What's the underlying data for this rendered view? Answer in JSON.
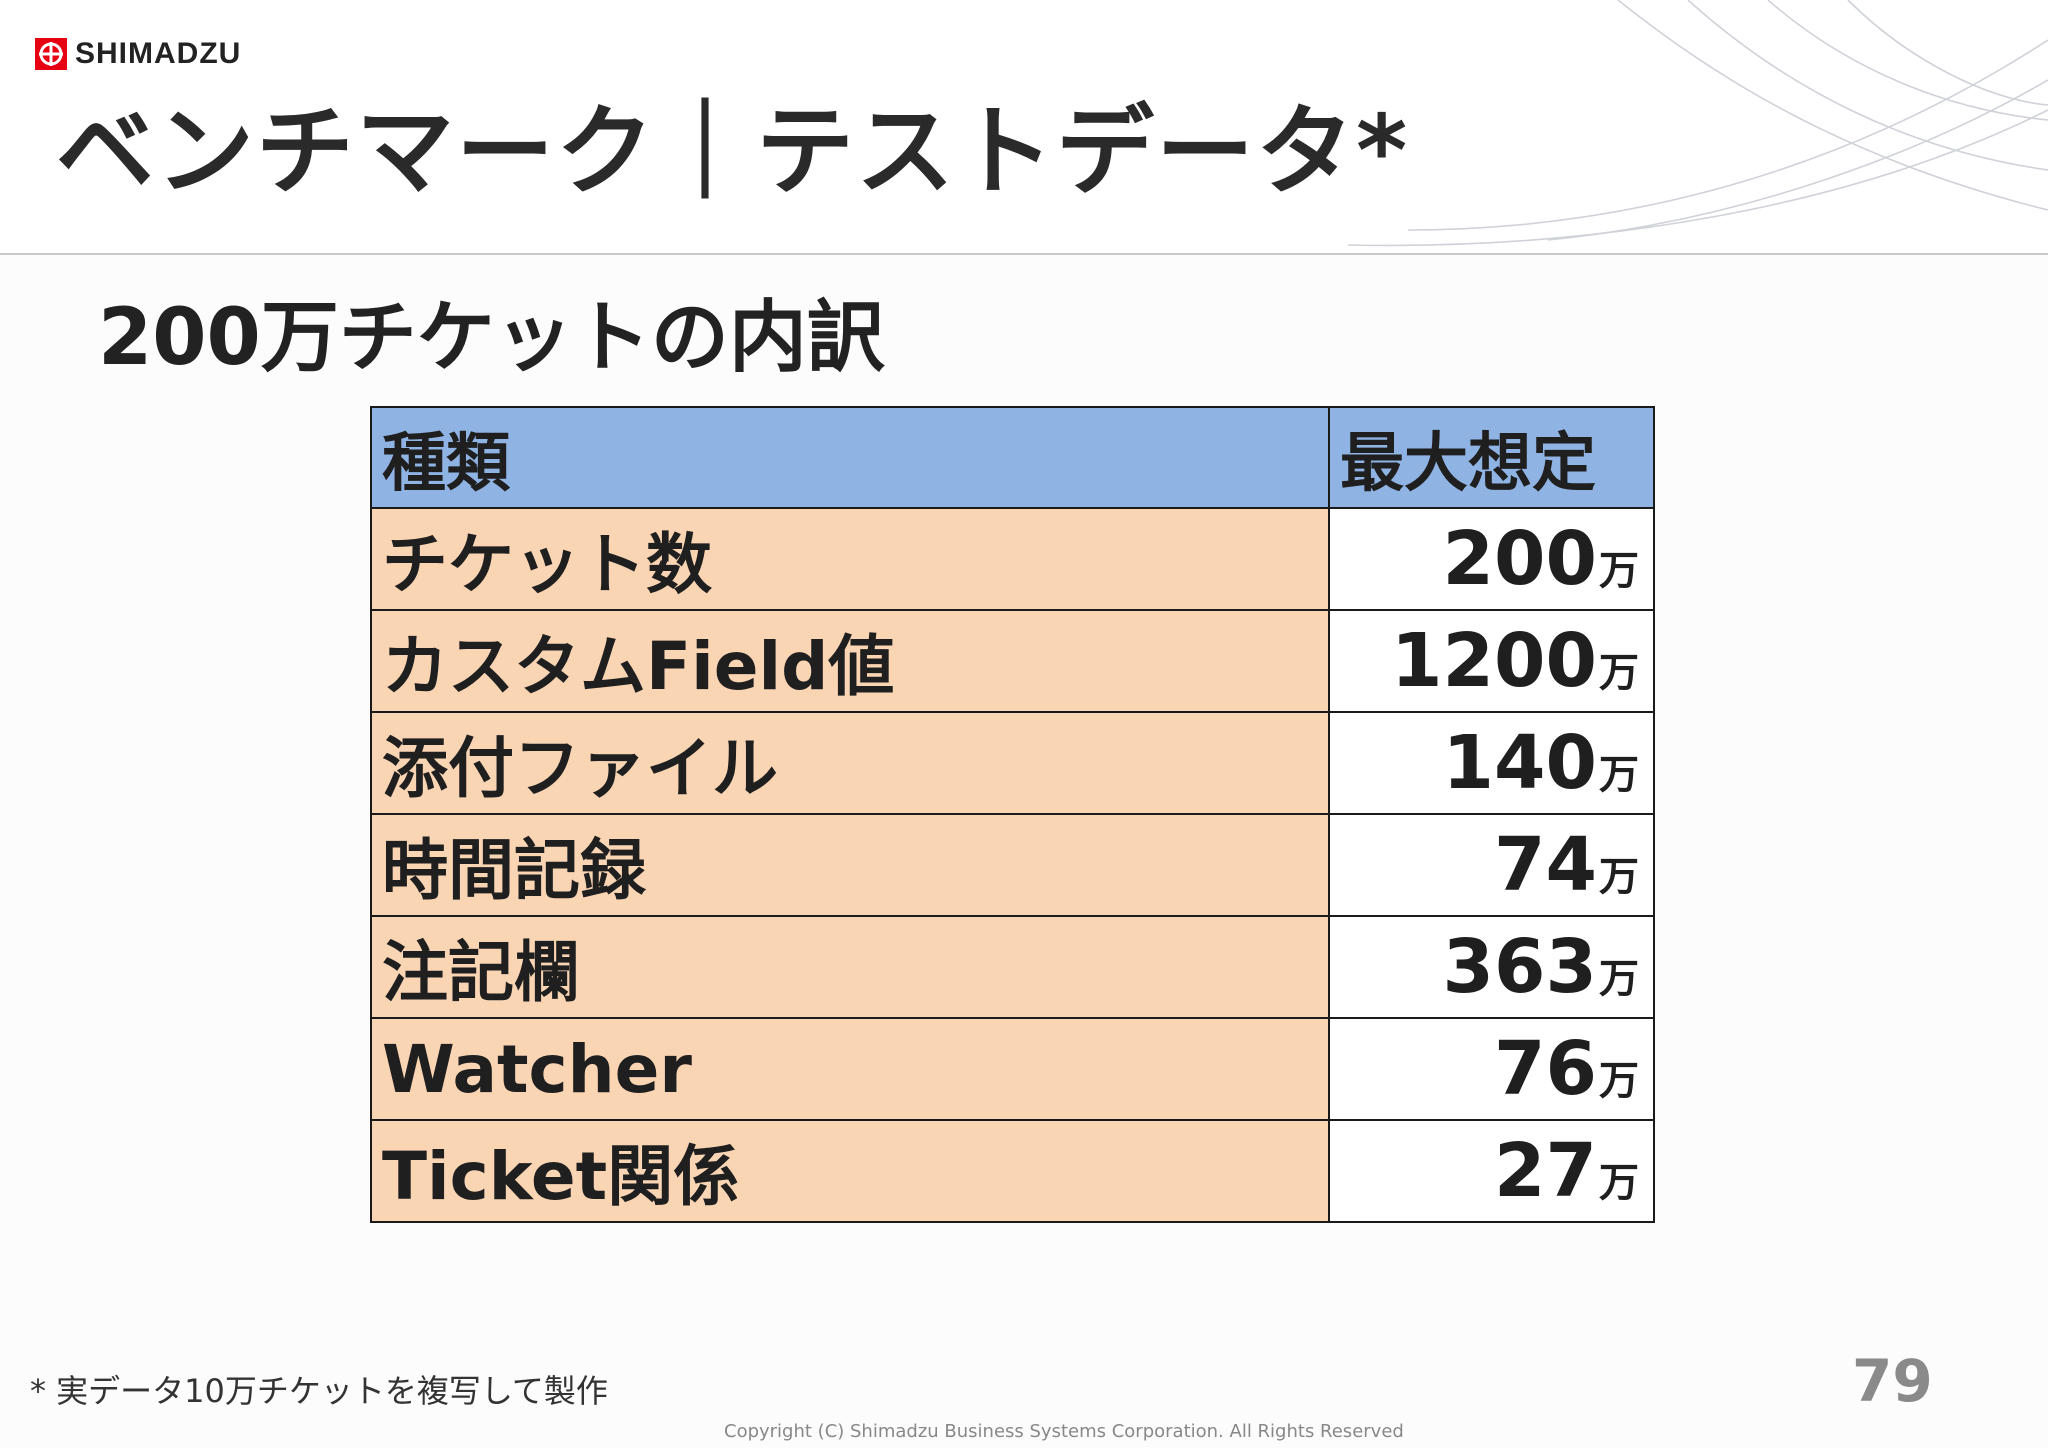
{
  "brand": {
    "name": "SHIMADZU",
    "color": "#e60012"
  },
  "header": {
    "title": "ベンチマーク｜テストデータ*"
  },
  "section": {
    "subtitle": "200万チケットの内訳"
  },
  "table": {
    "headers": [
      "種類",
      "最大想定"
    ],
    "unit": "万",
    "rows": [
      {
        "kind": "チケット数",
        "value": "200"
      },
      {
        "kind": "カスタムField値",
        "value": "1200"
      },
      {
        "kind": "添付ファイル",
        "value": "140"
      },
      {
        "kind": "時間記録",
        "value": "74"
      },
      {
        "kind": "注記欄",
        "value": "363"
      },
      {
        "kind": "Watcher",
        "value": "76"
      },
      {
        "kind": "Ticket関係",
        "value": "27"
      }
    ],
    "colors": {
      "header_bg": "#8fb3e3",
      "kind_bg": "#fad5b4",
      "value_bg": "#ffffff"
    }
  },
  "footer": {
    "footnote": "* 実データ10万チケットを複写して製作",
    "page_number": "79",
    "copyright": "Copyright (C) Shimadzu Business Systems Corporation. All Rights Reserved"
  }
}
